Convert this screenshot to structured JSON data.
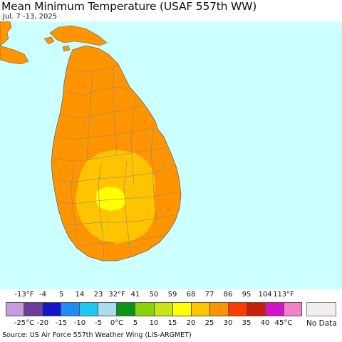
{
  "title": "Mean Minimum Temperature (USAF 557th WW)",
  "date_range": "Jul. 7 -13, 2025",
  "colors": {
    "ocean": "#ccffff",
    "land_base": "#fe9400",
    "warm_zone": "#ffc400",
    "peak_zone": "#ffff00",
    "boundary": "#888888"
  },
  "legend": {
    "fahrenheit_labels": [
      "-13°F",
      "-4",
      "5",
      "14",
      "23",
      "32°F",
      "41",
      "50",
      "59",
      "68",
      "77",
      "86",
      "95",
      "104",
      "113°F"
    ],
    "celsius_labels": [
      "-25°C",
      "-20",
      "-15",
      "-10",
      "-5",
      "0°C",
      "5",
      "10",
      "15",
      "20",
      "25",
      "30",
      "35",
      "40",
      "45°C"
    ],
    "colors": [
      "#c49de0",
      "#6c3d9a",
      "#1414c8",
      "#1e8cf0",
      "#1ec8f0",
      "#aadcf0",
      "#0a9614",
      "#8cd20a",
      "#c8e614",
      "#ffff00",
      "#ffc400",
      "#fe9400",
      "#fe3c00",
      "#c81e0a",
      "#d214c8",
      "#f082c8"
    ],
    "no_data_label": "No Data",
    "no_data_color": "#f0eeee"
  },
  "source": "Source: US Air Force 557th Weather Wing (LIS-ARGMET)"
}
